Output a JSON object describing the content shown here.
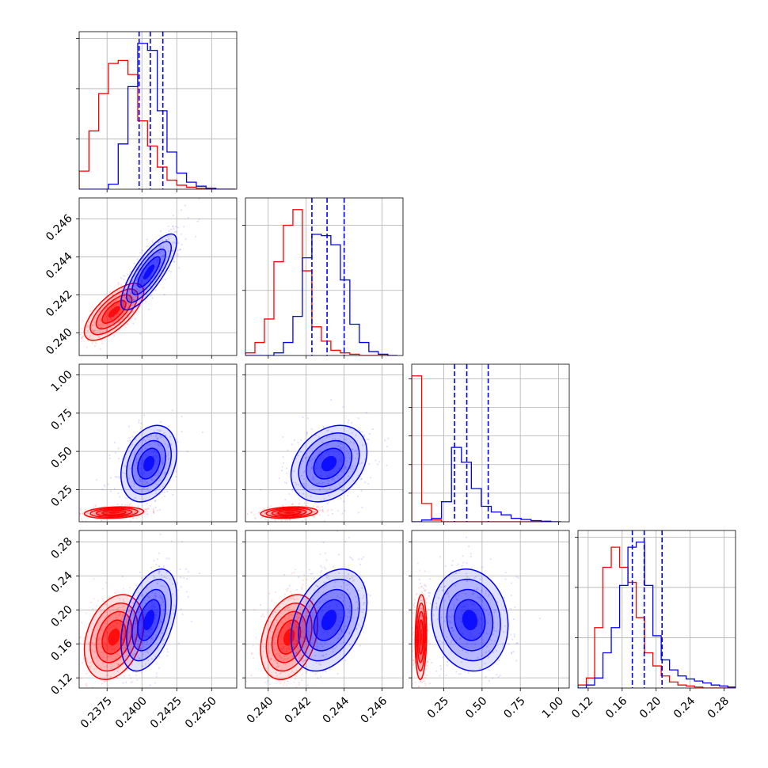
{
  "chart_data": {
    "type": "corner",
    "colors": {
      "red": "#ff0000",
      "blue": "#0000ff",
      "grid": "#b0b0b0"
    },
    "parameters": [
      {
        "range": [
          0.2355,
          0.2468
        ],
        "ticks": [
          0.2375,
          0.24,
          0.2425,
          0.245
        ],
        "tick_labels": [
          "0.2375",
          "0.2400",
          "0.2425",
          "0.2450"
        ]
      },
      {
        "range": [
          0.2388,
          0.2471
        ],
        "ticks": [
          0.24,
          0.242,
          0.244,
          0.246
        ],
        "tick_labels": [
          "0.240",
          "0.242",
          "0.244",
          "0.246"
        ]
      },
      {
        "range": [
          0.04,
          1.07
        ],
        "ticks": [
          0.25,
          0.5,
          0.75,
          1.0
        ],
        "tick_labels": [
          "0.25",
          "0.50",
          "0.75",
          "1.00"
        ]
      },
      {
        "range": [
          0.108,
          0.2935
        ],
        "ticks": [
          0.12,
          0.16,
          0.2,
          0.24,
          0.28
        ],
        "tick_labels": [
          "0.12",
          "0.16",
          "0.20",
          "0.24",
          "0.28"
        ]
      }
    ],
    "series": [
      {
        "color": "red",
        "mean": [
          0.238,
          0.2411,
          0.1,
          0.168
        ],
        "std": [
          0.00085,
          0.0006,
          0.015,
          0.02
        ],
        "corr": [
          [
            1,
            0.7,
            0.2,
            0.3
          ],
          [
            0.7,
            1,
            0.2,
            0.3
          ],
          [
            0.2,
            0.2,
            1,
            0.1
          ],
          [
            0.3,
            0.3,
            0.1,
            1
          ]
        ]
      },
      {
        "color": "blue",
        "mean": [
          0.2405,
          0.2432,
          0.42,
          0.188
        ],
        "std": [
          0.0008,
          0.0008,
          0.1,
          0.024
        ],
        "corr": [
          [
            1,
            0.8,
            0.3,
            0.45
          ],
          [
            0.8,
            1,
            0.3,
            0.35
          ],
          [
            0.3,
            0.3,
            1,
            -0.1
          ],
          [
            0.45,
            0.35,
            -0.1,
            1
          ]
        ]
      }
    ],
    "quantiles_blue": [
      [
        0.2398,
        0.2406,
        0.2415
      ],
      [
        0.2423,
        0.2431,
        0.244
      ],
      [
        0.32,
        0.4,
        0.54
      ],
      [
        0.172,
        0.186,
        0.207
      ]
    ],
    "histograms": [
      {
        "bins": [
          0.2355,
          0.2362,
          0.2369,
          0.2376,
          0.2383,
          0.239,
          0.2397,
          0.2404,
          0.2411,
          0.2418,
          0.2425,
          0.2432,
          0.2439,
          0.2446,
          0.2453,
          0.246,
          0.2467
        ],
        "red": [
          0.18,
          0.58,
          0.95,
          1.25,
          1.28,
          1.14,
          0.68,
          0.43,
          0.22,
          0.09,
          0.04,
          0.02,
          0.01,
          0,
          0,
          0
        ],
        "blue": [
          0,
          0,
          0,
          0.05,
          0.45,
          1.02,
          1.45,
          1.38,
          0.78,
          0.37,
          0.16,
          0.07,
          0.03,
          0.01,
          0,
          0
        ]
      },
      {
        "bins": [
          0.2388,
          0.2393,
          0.2398,
          0.2403,
          0.2408,
          0.2413,
          0.2418,
          0.2423,
          0.2428,
          0.2433,
          0.2438,
          0.2443,
          0.2448,
          0.2453,
          0.2458,
          0.2463,
          0.2468
        ],
        "red": [
          0.02,
          0.1,
          0.28,
          0.72,
          1.0,
          1.12,
          0.65,
          0.22,
          0.11,
          0.04,
          0.02,
          0.01,
          0,
          0,
          0,
          0
        ],
        "blue": [
          0,
          0,
          0,
          0.02,
          0.1,
          0.3,
          0.75,
          0.93,
          0.92,
          0.85,
          0.58,
          0.24,
          0.1,
          0.03,
          0.01,
          0
        ]
      },
      {
        "bins": [
          0.04,
          0.105,
          0.17,
          0.235,
          0.3,
          0.365,
          0.43,
          0.495,
          0.56,
          0.625,
          0.69,
          0.755,
          0.82,
          0.885,
          0.95,
          1.015
        ],
        "red": [
          2.55,
          0.32,
          0.03,
          0,
          0,
          0,
          0,
          0,
          0,
          0,
          0,
          0,
          0,
          0,
          0
        ],
        "blue": [
          0,
          0.03,
          0.06,
          0.35,
          1.3,
          1.04,
          0.58,
          0.27,
          0.17,
          0.12,
          0.06,
          0.04,
          0.02,
          0.01,
          0
        ]
      },
      {
        "bins": [
          0.108,
          0.1178,
          0.1276,
          0.1374,
          0.1472,
          0.157,
          0.1668,
          0.1766,
          0.1864,
          0.1962,
          0.206,
          0.2158,
          0.2256,
          0.2354,
          0.2452,
          0.255,
          0.2648,
          0.2746,
          0.2844,
          0.2935
        ],
        "red": [
          0.03,
          0.1,
          0.6,
          1.2,
          1.4,
          1.2,
          1.05,
          0.7,
          0.35,
          0.22,
          0.12,
          0.06,
          0.03,
          0.02,
          0.01,
          0,
          0,
          0,
          0
        ],
        "blue": [
          0,
          0.03,
          0.1,
          0.35,
          0.6,
          1.02,
          1.4,
          1.45,
          1.02,
          0.52,
          0.28,
          0.18,
          0.12,
          0.09,
          0.07,
          0.05,
          0.03,
          0.02,
          0.01
        ]
      }
    ]
  }
}
